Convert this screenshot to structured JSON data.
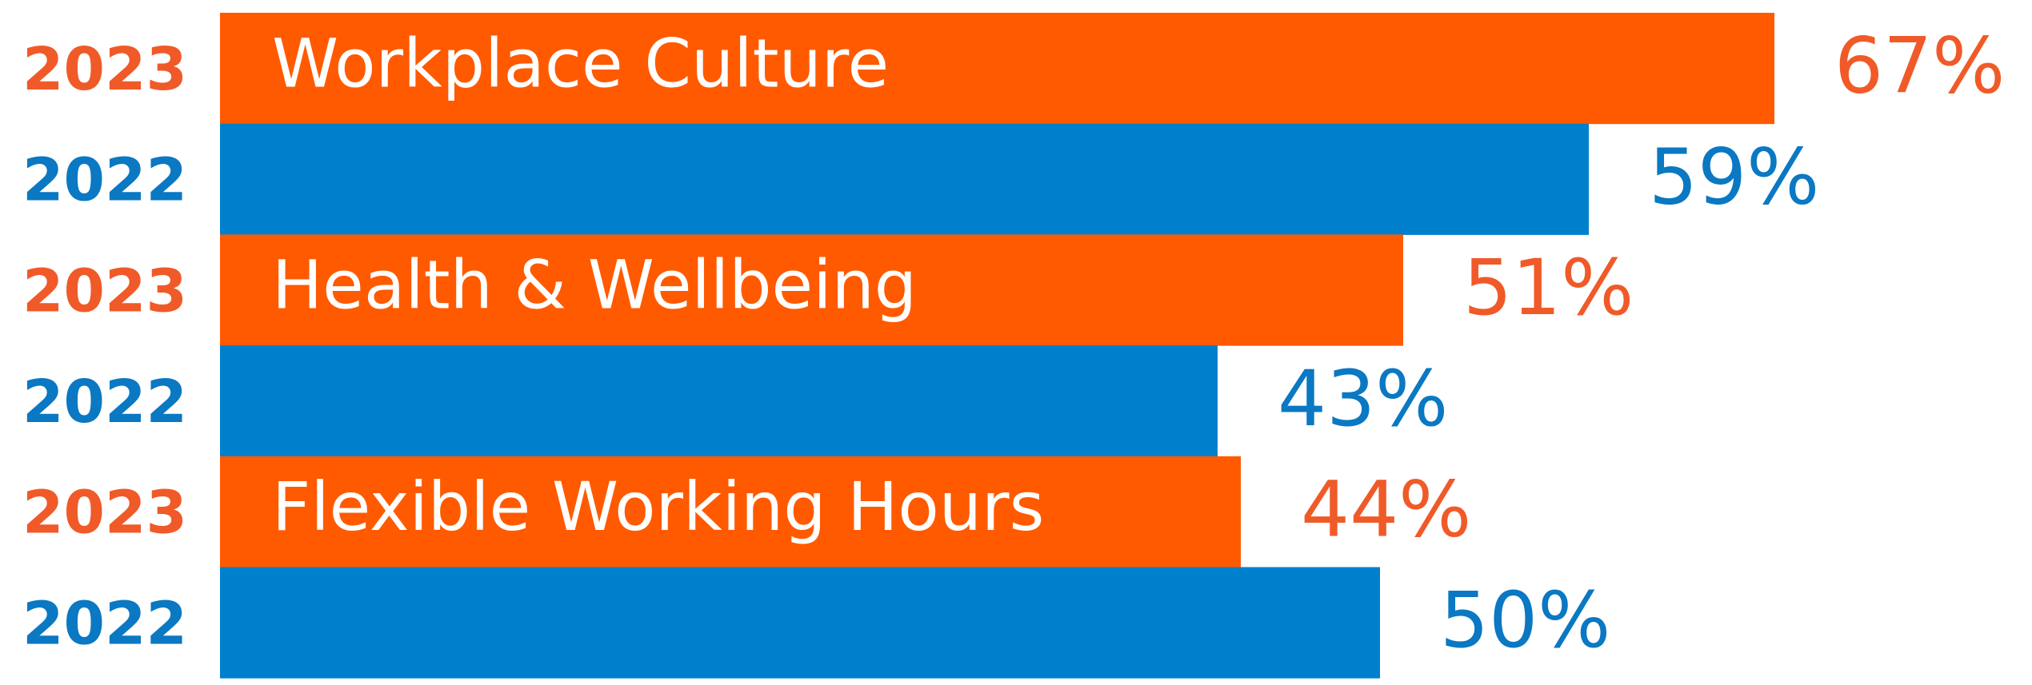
{
  "chart_data": {
    "type": "bar",
    "orientation": "horizontal",
    "categories": [
      "Workplace Culture",
      "Health & Wellbeing",
      "Flexible Working Hours"
    ],
    "series": [
      {
        "name": "2023",
        "color": "#ff5a00",
        "label_color": "#f05a28",
        "values": [
          67,
          51,
          44
        ],
        "value_labels": [
          "67%",
          "51%",
          "44%"
        ]
      },
      {
        "name": "2022",
        "color": "#0080cc",
        "label_color": "#0a78c2",
        "values": [
          59,
          43,
          50
        ],
        "value_labels": [
          "59%",
          "43%",
          "50%"
        ]
      }
    ]
  }
}
